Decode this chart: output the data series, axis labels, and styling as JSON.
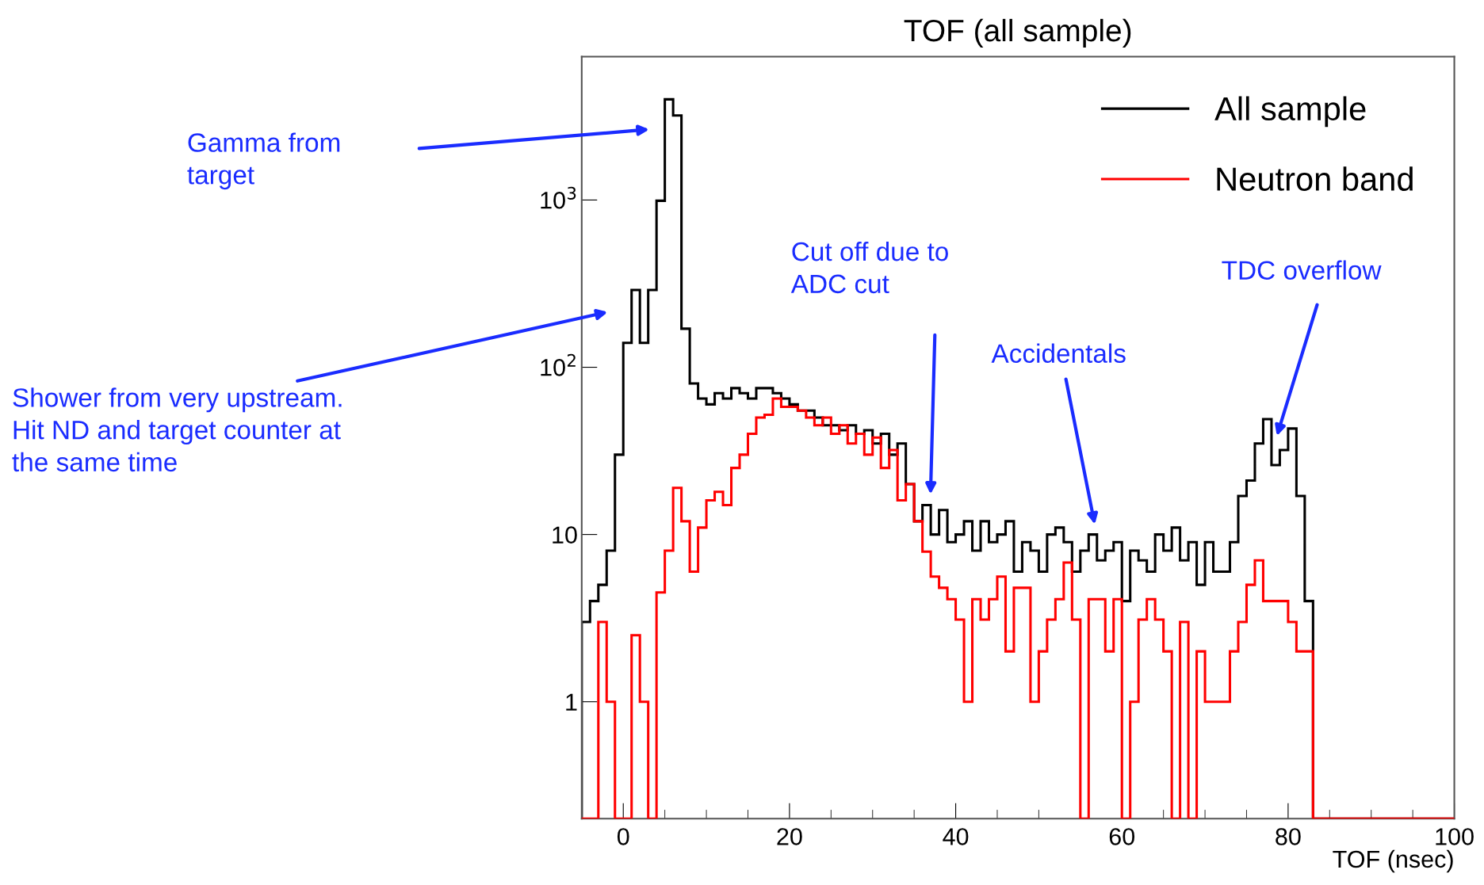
{
  "chart_data": {
    "type": "histogram",
    "title": "TOF (all sample)",
    "xlabel": "TOF (nsec)",
    "bins": [
      -5,
      -4,
      -3,
      -2,
      -1,
      0,
      1,
      2,
      3,
      4,
      5,
      6,
      7,
      8,
      9,
      10,
      11,
      12,
      13,
      14,
      15,
      16,
      17,
      18,
      19,
      20,
      21,
      22,
      23,
      24,
      25,
      26,
      27,
      28,
      29,
      30,
      31,
      32,
      33,
      34,
      35,
      36,
      37,
      38,
      39,
      40,
      41,
      42,
      43,
      44,
      45,
      46,
      47,
      48,
      49,
      50,
      51,
      52,
      53,
      54,
      55,
      56,
      57,
      58,
      59,
      60,
      61,
      62,
      63,
      64,
      65,
      66,
      67,
      68,
      69,
      70,
      71,
      72,
      73,
      74,
      75,
      76,
      77,
      78,
      79,
      80,
      81,
      82,
      83,
      84,
      85,
      86,
      87,
      88,
      89,
      90,
      91,
      92,
      93,
      94,
      95,
      96,
      97,
      98,
      99,
      100
    ],
    "series": [
      {
        "name": "All sample",
        "color": "#000000",
        "values": [
          3,
          4,
          5,
          8,
          30,
          140,
          290,
          140,
          290,
          990,
          4000,
          3200,
          170,
          80,
          65,
          60,
          70,
          65,
          75,
          70,
          65,
          75,
          75,
          70,
          65,
          60,
          55,
          55,
          50,
          45,
          45,
          42,
          45,
          40,
          42,
          35,
          40,
          30,
          35,
          20,
          12,
          15,
          10,
          14,
          9,
          10,
          12,
          8,
          12,
          9,
          10,
          12,
          6,
          9,
          8,
          6,
          10,
          11,
          9,
          6,
          8,
          10,
          7,
          8,
          9,
          4,
          8,
          7,
          6,
          10,
          8,
          11,
          7,
          9,
          5,
          9,
          6,
          6,
          9,
          17,
          21,
          35,
          49,
          26,
          32,
          43,
          17,
          4,
          null,
          null,
          null,
          null,
          null,
          null,
          null,
          null,
          null,
          null,
          null,
          null,
          null,
          null,
          null,
          null,
          null
        ]
      },
      {
        "name": "Neutron band",
        "color": "#ff0000",
        "values": [
          null,
          null,
          3,
          1,
          null,
          null,
          2.5,
          1,
          null,
          4.5,
          8,
          19,
          12,
          6,
          11,
          16,
          18,
          15,
          25,
          30,
          40,
          50,
          52,
          65,
          58,
          58,
          55,
          50,
          45,
          50,
          40,
          45,
          35,
          40,
          30,
          38,
          25,
          32,
          16,
          20,
          12,
          7.9,
          5.6,
          4.8,
          4.1,
          3.1,
          1,
          4.1,
          3.1,
          4.1,
          5.6,
          2,
          4.8,
          4.8,
          1,
          2,
          3.1,
          4.1,
          6.8,
          3.1,
          null,
          4.1,
          4.1,
          2,
          4.1,
          null,
          1,
          3.1,
          4.1,
          3.1,
          2,
          null,
          3,
          null,
          2,
          1,
          1,
          1,
          2,
          3,
          5,
          7,
          4,
          4,
          4,
          3,
          2,
          2,
          null,
          null,
          null,
          null,
          null,
          null,
          null,
          null,
          null,
          null,
          null,
          null,
          null,
          null,
          null,
          null,
          null
        ]
      }
    ],
    "xlim": [
      -5,
      100
    ],
    "ylim": [
      0.2,
      7200
    ],
    "log": "y",
    "xticks": [
      0,
      20,
      40,
      60,
      80,
      100
    ],
    "yticks": [
      1,
      10,
      {
        "value": 100,
        "label": "10$^{2}$"
      },
      {
        "value": 1000,
        "label": "10$^{3}$"
      }
    ],
    "legend": "top right",
    "grid": false,
    "annotations": [
      "Gamma from\ntarget",
      "Shower from very upstream.\nHit ND and target counter at\nthe same time",
      "Cut off due to\nADC cut",
      "Accidentals",
      "TDC overflow"
    ]
  }
}
